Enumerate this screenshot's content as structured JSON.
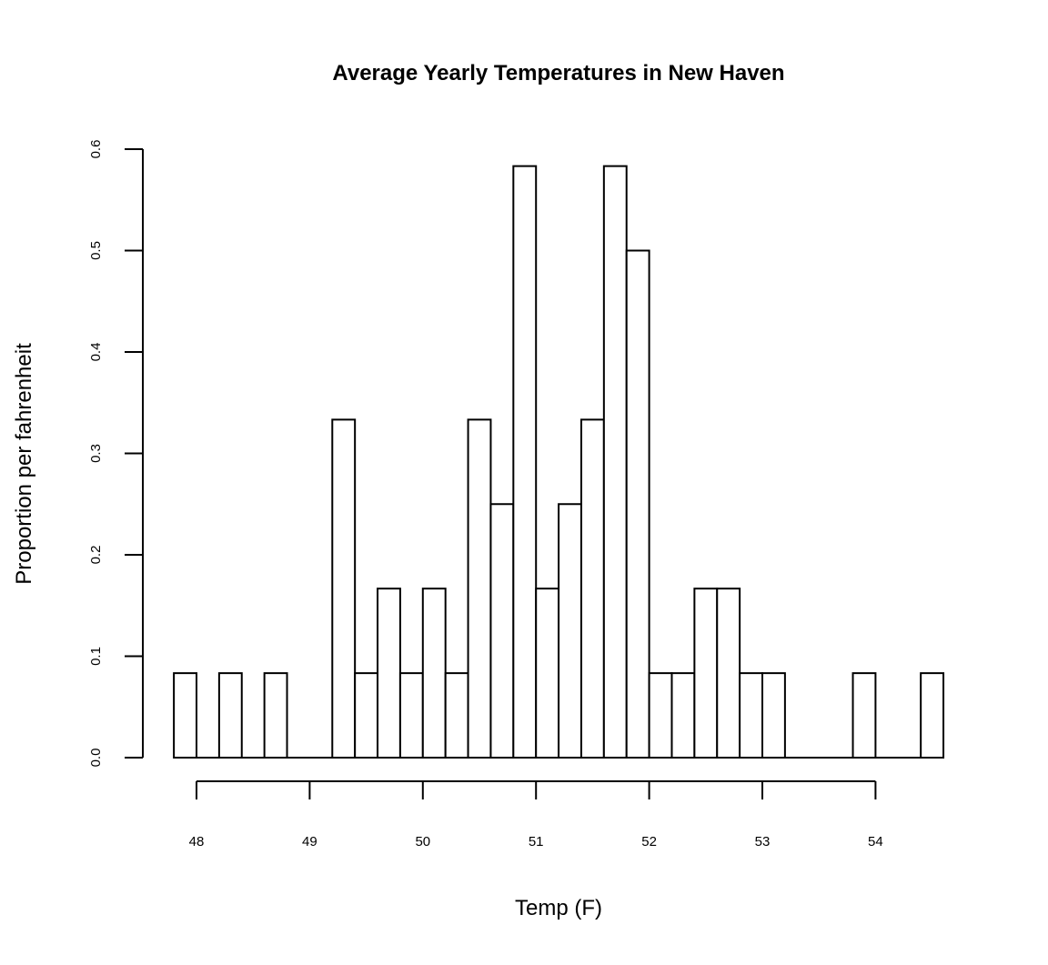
{
  "chart_data": {
    "type": "bar",
    "title": "Average Yearly Temperatures in New Haven",
    "xlabel": "Temp (F)",
    "ylabel": "Proportion per fahrenheit",
    "x_bin_edges": [
      47.8,
      48.0,
      48.2,
      48.4,
      48.6,
      48.8,
      49.0,
      49.2,
      49.4,
      49.6,
      49.8,
      50.0,
      50.2,
      50.4,
      50.6,
      50.8,
      51.0,
      51.2,
      51.4,
      51.6,
      51.8,
      52.0,
      52.2,
      52.4,
      52.6,
      52.8,
      53.0,
      53.2,
      53.4,
      53.6,
      53.8,
      54.0,
      54.2,
      54.4,
      54.6
    ],
    "values": [
      0.0833,
      0,
      0.0833,
      0,
      0.0833,
      0,
      0,
      0.3333,
      0.0833,
      0.1667,
      0.0833,
      0.1667,
      0.0833,
      0.3333,
      0.25,
      0.5833,
      0.1667,
      0.25,
      0.3333,
      0.5833,
      0.5,
      0.0833,
      0.0833,
      0.1667,
      0.1667,
      0.0833,
      0.0833,
      0,
      0,
      0,
      0.0833,
      0,
      0,
      0.0833
    ],
    "xlim": [
      47.8,
      54.6
    ],
    "ylim": [
      0,
      0.6
    ],
    "x_ticks": [
      48,
      49,
      50,
      51,
      52,
      53,
      54
    ],
    "x_tick_labels": [
      "48",
      "49",
      "50",
      "51",
      "52",
      "53",
      "54"
    ],
    "y_ticks": [
      0,
      0.1,
      0.2,
      0.3,
      0.4,
      0.5,
      0.6
    ],
    "y_tick_labels": [
      "0.0",
      "0.1",
      "0.2",
      "0.3",
      "0.4",
      "0.5",
      "0.6"
    ],
    "grid": false,
    "legend": "none",
    "colors": {
      "bar_fill": "#ffffff",
      "bar_stroke": "#000000",
      "background": "#ffffff"
    }
  }
}
